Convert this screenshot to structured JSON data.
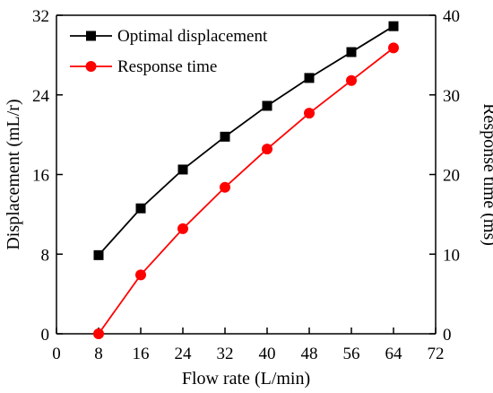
{
  "chart_data": {
    "type": "line",
    "title": "",
    "xlabel": "Flow rate (L/min)",
    "ylabel": "Displacement (mL/r)",
    "y2label": "Response time (ms)",
    "xlim": [
      0,
      72
    ],
    "ylim": [
      0,
      32
    ],
    "y2lim": [
      0,
      40
    ],
    "xticks": [
      "0",
      "8",
      "16",
      "24",
      "32",
      "40",
      "48",
      "56",
      "64",
      "72"
    ],
    "yticks": [
      "0",
      "8",
      "16",
      "24",
      "32"
    ],
    "y2ticks": [
      "0",
      "10",
      "20",
      "30",
      "40"
    ],
    "grid": false,
    "legend_position": "top-left",
    "series": [
      {
        "name": "Optimal displacement",
        "axis": "left",
        "color": "#000000",
        "marker": "square",
        "x": [
          8,
          16,
          24,
          32,
          40,
          48,
          56,
          64
        ],
        "y": [
          7.9,
          12.6,
          16.5,
          19.8,
          22.9,
          25.7,
          28.3,
          30.9
        ]
      },
      {
        "name": "Response time",
        "axis": "right",
        "color": "#ff0000",
        "marker": "circle",
        "x": [
          8,
          16,
          24,
          32,
          40,
          48,
          56,
          64
        ],
        "y": [
          0,
          7.4,
          13.2,
          18.4,
          23.2,
          27.7,
          31.8,
          35.9
        ]
      }
    ]
  }
}
